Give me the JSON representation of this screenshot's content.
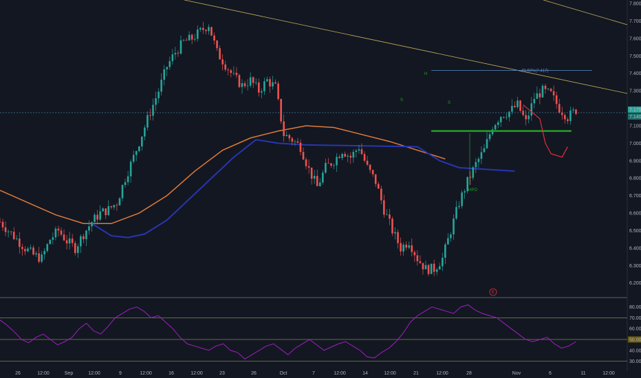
{
  "chart_data": [
    {
      "type": "candlestick",
      "panel": "price",
      "y_axis_ticks": [
        6.2,
        6.3,
        6.4,
        6.5,
        6.6,
        6.7,
        6.8,
        6.9,
        7.0,
        7.1,
        7.2,
        7.3,
        7.4,
        7.5,
        7.6,
        7.7,
        7.8
      ],
      "y_axis_tick_labels": [
        "6.200",
        "6.300",
        "6.400",
        "6.500",
        "6.600",
        "6.700",
        "6.800",
        "6.900",
        "7.000",
        "7.100",
        "7.200",
        "7.300",
        "7.400",
        "7.500",
        "7.600",
        "7.700",
        "7.800"
      ],
      "ylim": [
        6.12,
        7.82
      ],
      "x_axis_labels": [
        "26",
        "12:00",
        "Sep",
        "12:00",
        "9",
        "12:00",
        "16",
        "12:00",
        "23",
        "26",
        "Oct",
        "7",
        "12:00",
        "14",
        "12:00",
        "21",
        "12:00",
        "28",
        "Nov",
        "6",
        "11",
        "12:00"
      ],
      "current_price_labels": [
        "7.175",
        "7.140"
      ],
      "price_levels": {
        "current": 7.175,
        "fib_level": 7.417,
        "support": 7.07
      },
      "close_path": [
        [
          0,
          6.55
        ],
        [
          3,
          6.5
        ],
        [
          6,
          6.45
        ],
        [
          9,
          6.4
        ],
        [
          12,
          6.36
        ],
        [
          15,
          6.34
        ],
        [
          18,
          6.45
        ],
        [
          21,
          6.5
        ],
        [
          24,
          6.44
        ],
        [
          27,
          6.4
        ],
        [
          30,
          6.48
        ],
        [
          33,
          6.55
        ],
        [
          36,
          6.6
        ],
        [
          39,
          6.62
        ],
        [
          42,
          6.66
        ],
        [
          45,
          6.8
        ],
        [
          48,
          6.92
        ],
        [
          51,
          7.05
        ],
        [
          54,
          7.18
        ],
        [
          57,
          7.3
        ],
        [
          60,
          7.44
        ],
        [
          63,
          7.52
        ],
        [
          66,
          7.58
        ],
        [
          69,
          7.6
        ],
        [
          72,
          7.64
        ],
        [
          75,
          7.68
        ],
        [
          78,
          7.52
        ],
        [
          81,
          7.45
        ],
        [
          84,
          7.38
        ],
        [
          87,
          7.33
        ],
        [
          90,
          7.36
        ],
        [
          93,
          7.3
        ],
        [
          96,
          7.36
        ],
        [
          99,
          7.32
        ],
        [
          102,
          7.05
        ],
        [
          105,
          7.02
        ],
        [
          108,
          6.98
        ],
        [
          111,
          6.85
        ],
        [
          114,
          6.75
        ],
        [
          117,
          6.86
        ],
        [
          120,
          6.9
        ],
        [
          123,
          6.96
        ],
        [
          126,
          6.92
        ],
        [
          129,
          6.98
        ],
        [
          132,
          6.86
        ],
        [
          135,
          6.78
        ],
        [
          138,
          6.62
        ],
        [
          141,
          6.5
        ],
        [
          144,
          6.4
        ],
        [
          147,
          6.44
        ],
        [
          150,
          6.34
        ],
        [
          153,
          6.28
        ],
        [
          156,
          6.28
        ],
        [
          159,
          6.34
        ],
        [
          162,
          6.5
        ],
        [
          165,
          6.66
        ],
        [
          168,
          6.78
        ],
        [
          171,
          6.88
        ],
        [
          174,
          6.96
        ],
        [
          177,
          7.1
        ],
        [
          180,
          7.16
        ],
        [
          183,
          7.18
        ],
        [
          186,
          7.22
        ],
        [
          189,
          7.12
        ],
        [
          192,
          7.26
        ],
        [
          195,
          7.3
        ],
        [
          198,
          7.28
        ],
        [
          201,
          7.2
        ],
        [
          204,
          7.15
        ],
        [
          207,
          7.19
        ]
      ],
      "ma_slow": [
        [
          0,
          6.73
        ],
        [
          10,
          6.66
        ],
        [
          20,
          6.59
        ],
        [
          30,
          6.54
        ],
        [
          40,
          6.54
        ],
        [
          50,
          6.6
        ],
        [
          60,
          6.7
        ],
        [
          70,
          6.84
        ],
        [
          80,
          6.96
        ],
        [
          90,
          7.03
        ],
        [
          100,
          7.07
        ],
        [
          110,
          7.1
        ],
        [
          120,
          7.09
        ],
        [
          130,
          7.05
        ],
        [
          140,
          7.01
        ],
        [
          150,
          6.96
        ],
        [
          160,
          6.91
        ]
      ],
      "ma_fast": [
        [
          33,
          6.54
        ],
        [
          40,
          6.47
        ],
        [
          46,
          6.46
        ],
        [
          52,
          6.48
        ],
        [
          60,
          6.56
        ],
        [
          68,
          6.68
        ],
        [
          76,
          6.8
        ],
        [
          84,
          6.92
        ],
        [
          92,
          7.02
        ],
        [
          100,
          7.0
        ],
        [
          110,
          6.99
        ],
        [
          150,
          6.98
        ],
        [
          158,
          6.9
        ],
        [
          165,
          6.86
        ],
        [
          175,
          6.85
        ],
        [
          185,
          6.84
        ]
      ],
      "projection_path": [
        [
          188,
          7.22
        ],
        [
          194,
          7.14
        ],
        [
          196,
          7.0
        ],
        [
          198,
          6.94
        ],
        [
          202,
          6.92
        ],
        [
          204,
          6.98
        ]
      ],
      "annotations": [
        {
          "text": "78.60%(7.417)",
          "price": 7.417
        },
        {
          "text": "HPO"
        },
        {
          "text": "H"
        },
        {
          "text": "S"
        },
        {
          "text": "S"
        },
        {
          "text": "E"
        }
      ]
    },
    {
      "type": "line",
      "panel": "indicator",
      "y_axis_ticks": [
        30,
        40,
        50,
        60,
        70,
        80
      ],
      "y_axis_tick_labels": [
        "30.00",
        "40.00",
        "50.00",
        "60.00",
        "70.00",
        "80.00"
      ],
      "ylim": [
        24,
        88
      ],
      "bands": [
        70,
        50,
        30
      ],
      "current_value_label": "50.00",
      "values": [
        68,
        63,
        57,
        50,
        47,
        52,
        55,
        50,
        45,
        48,
        52,
        60,
        65,
        58,
        55,
        62,
        70,
        74,
        78,
        80,
        76,
        70,
        72,
        66,
        60,
        52,
        46,
        44,
        42,
        40,
        44,
        46,
        40,
        38,
        32,
        36,
        40,
        44,
        46,
        41,
        36,
        42,
        46,
        50,
        45,
        40,
        43,
        46,
        48,
        44,
        40,
        34,
        33,
        38,
        42,
        48,
        56,
        66,
        72,
        76,
        80,
        78,
        76,
        74,
        80,
        82,
        77,
        74,
        72,
        70,
        65,
        60,
        55,
        50,
        48,
        50,
        52,
        46,
        42,
        44,
        48
      ]
    }
  ]
}
